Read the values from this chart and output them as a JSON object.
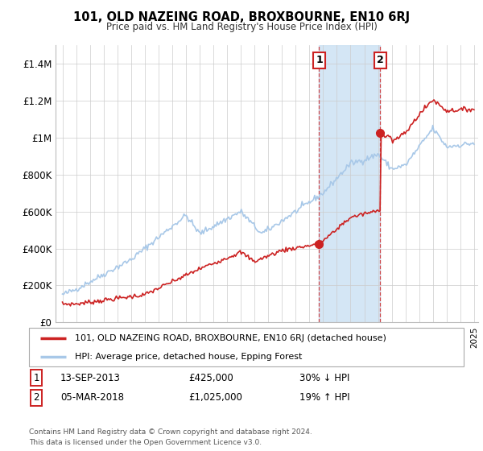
{
  "title": "101, OLD NAZEING ROAD, BROXBOURNE, EN10 6RJ",
  "subtitle": "Price paid vs. HM Land Registry's House Price Index (HPI)",
  "footer": "Contains HM Land Registry data © Crown copyright and database right 2024.\nThis data is licensed under the Open Government Licence v3.0.",
  "legend_line1": "101, OLD NAZEING ROAD, BROXBOURNE, EN10 6RJ (detached house)",
  "legend_line2": "HPI: Average price, detached house, Epping Forest",
  "transaction1_label": "1",
  "transaction1_date": "13-SEP-2013",
  "transaction1_price": "£425,000",
  "transaction1_hpi": "30% ↓ HPI",
  "transaction2_label": "2",
  "transaction2_date": "05-MAR-2018",
  "transaction2_price": "£1,025,000",
  "transaction2_hpi": "19% ↑ HPI",
  "hpi_color": "#a8c8e8",
  "price_color": "#cc2222",
  "shade_color": "#d0e4f4",
  "marker_color": "#cc2222",
  "ylim": [
    0,
    1500000
  ],
  "yticks": [
    0,
    200000,
    400000,
    600000,
    800000,
    1000000,
    1200000,
    1400000
  ],
  "ytick_labels": [
    "£0",
    "£200K",
    "£400K",
    "£600K",
    "£800K",
    "£1M",
    "£1.2M",
    "£1.4M"
  ],
  "t1_x": 2013.71,
  "t1_y": 425000,
  "t2_x": 2018.17,
  "t2_y": 1025000,
  "shade_x_start": 2013.71,
  "shade_x_end": 2018.17,
  "xmin": 1995,
  "xmax": 2025
}
